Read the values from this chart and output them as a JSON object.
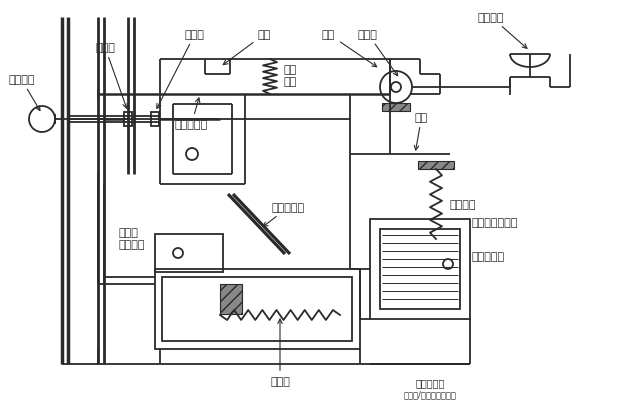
{
  "bg_color": "#ffffff",
  "line_color": "#2a2a2a",
  "lw": 1.3,
  "font_size": 8,
  "labels": {
    "dong_chu_dian": "动触点",
    "jie_tong_an_niu": "接通按钮",
    "jing_chu_dian": "静触点",
    "suo_kou": "锁扣",
    "dian_ci_tuo_kou_qi": "电磁脱扣器",
    "da_gou": "搭钩",
    "zhuan_zhou_zuo": "转轴座",
    "ting_zhi_an_niu": "停止按钮",
    "ya_li_tan_huang": "压力\n弹簧",
    "gang_gan": "杠杆",
    "la_li_tan_huang": "拉力弹簧",
    "dian_ci_tuo_kou_qi_shuai_tie": "电磁脱\n扣器衔铁",
    "re_shuang_jin_shu_pian": "热双金属片",
    "re_yuan_jian": "热元件",
    "qian_ya_tuo_kou_qi_shuai_tie": "欠压脱扣器衔铁",
    "qian_ya_tuo_kou_qi": "欠压脱扣器",
    "watermark": "水电工论坛",
    "watermark2": "头条号/老马收藏单片机"
  },
  "fig_width": 6.24,
  "fig_height": 4.06,
  "dpi": 100
}
